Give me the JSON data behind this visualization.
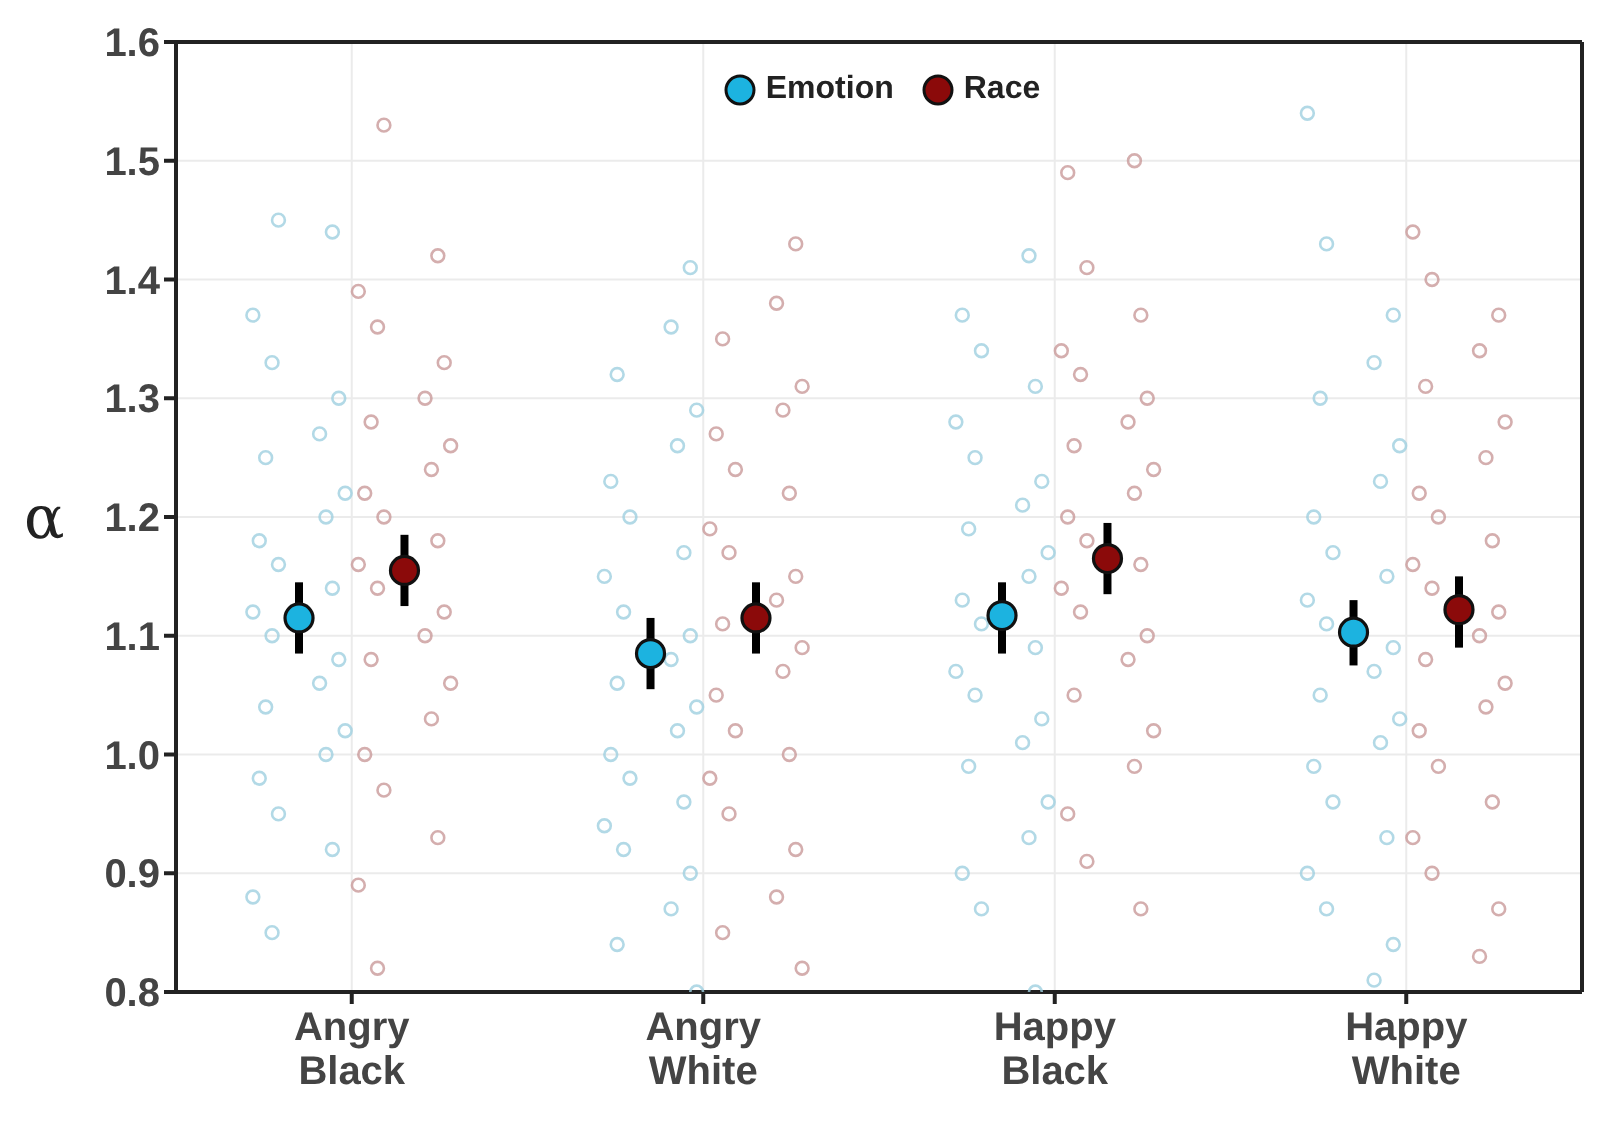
{
  "chart_data": {
    "type": "scatter",
    "ylabel": "α",
    "categories": [
      "Angry Black",
      "Angry White",
      "Happy Black",
      "Happy White"
    ],
    "ylim": [
      0.8,
      1.6
    ],
    "yticks": [
      0.8,
      0.9,
      {
        "value": 1.0,
        "label": "1.0"
      },
      1.1,
      1.2,
      1.3,
      1.4,
      1.5,
      1.6
    ],
    "grid": true,
    "legend": "top",
    "marker": "circle",
    "series": [
      {
        "color": "#9fd0e0",
        "x": [
          "Angry Black",
          "Angry Black",
          "Angry Black",
          "Angry Black",
          "Angry Black",
          "Angry Black",
          "Angry Black",
          "Angry Black",
          "Angry Black",
          "Angry Black",
          "Angry Black",
          "Angry Black",
          "Angry Black",
          "Angry Black",
          "Angry Black",
          "Angry Black",
          "Angry Black",
          "Angry Black",
          "Angry Black",
          "Angry Black",
          "Angry Black",
          "Angry Black",
          "Angry Black",
          "Angry Black",
          "Angry White",
          "Angry White",
          "Angry White",
          "Angry White",
          "Angry White",
          "Angry White",
          "Angry White",
          "Angry White",
          "Angry White",
          "Angry White",
          "Angry White",
          "Angry White",
          "Angry White",
          "Angry White",
          "Angry White",
          "Angry White",
          "Angry White",
          "Angry White",
          "Angry White",
          "Angry White",
          "Angry White",
          "Angry White",
          "Angry White",
          "Angry White",
          "Happy Black",
          "Happy Black",
          "Happy Black",
          "Happy Black",
          "Happy Black",
          "Happy Black",
          "Happy Black",
          "Happy Black",
          "Happy Black",
          "Happy Black",
          "Happy Black",
          "Happy Black",
          "Happy Black",
          "Happy Black",
          "Happy Black",
          "Happy Black",
          "Happy Black",
          "Happy Black",
          "Happy Black",
          "Happy Black",
          "Happy Black",
          "Happy Black",
          "Happy Black",
          "Happy Black",
          "Happy White",
          "Happy White",
          "Happy White",
          "Happy White",
          "Happy White",
          "Happy White",
          "Happy White",
          "Happy White",
          "Happy White",
          "Happy White",
          "Happy White",
          "Happy White",
          "Happy White",
          "Happy White",
          "Happy White",
          "Happy White",
          "Happy White",
          "Happy White",
          "Happy White",
          "Happy White",
          "Happy White",
          "Happy White",
          "Happy White",
          "Happy White"
        ],
        "values": [
          1.45,
          1.44,
          1.37,
          1.33,
          1.3,
          1.27,
          1.25,
          1.22,
          1.2,
          1.18,
          1.16,
          1.14,
          1.12,
          1.1,
          1.08,
          1.06,
          1.04,
          1.02,
          1.0,
          0.98,
          0.95,
          0.92,
          0.88,
          0.85,
          1.41,
          1.36,
          1.32,
          1.29,
          1.26,
          1.23,
          1.2,
          1.17,
          1.15,
          1.12,
          1.1,
          1.08,
          1.06,
          1.04,
          1.02,
          1.0,
          0.98,
          0.96,
          0.94,
          0.92,
          0.9,
          0.87,
          0.84,
          0.8,
          1.42,
          1.37,
          1.34,
          1.31,
          1.28,
          1.25,
          1.23,
          1.21,
          1.19,
          1.17,
          1.15,
          1.13,
          1.11,
          1.09,
          1.07,
          1.05,
          1.03,
          1.01,
          0.99,
          0.96,
          0.93,
          0.9,
          0.87,
          0.8,
          1.54,
          1.43,
          1.37,
          1.33,
          1.3,
          1.26,
          1.23,
          1.2,
          1.17,
          1.15,
          1.13,
          1.11,
          1.09,
          1.07,
          1.05,
          1.03,
          1.01,
          0.99,
          0.96,
          0.93,
          0.9,
          0.87,
          0.84,
          0.81
        ]
      },
      {
        "color": "#c99a9a",
        "x": [
          "Angry Black",
          "Angry Black",
          "Angry Black",
          "Angry Black",
          "Angry Black",
          "Angry Black",
          "Angry Black",
          "Angry Black",
          "Angry Black",
          "Angry Black",
          "Angry Black",
          "Angry Black",
          "Angry Black",
          "Angry Black",
          "Angry Black",
          "Angry Black",
          "Angry Black",
          "Angry Black",
          "Angry Black",
          "Angry Black",
          "Angry Black",
          "Angry Black",
          "Angry Black",
          "Angry Black",
          "Angry White",
          "Angry White",
          "Angry White",
          "Angry White",
          "Angry White",
          "Angry White",
          "Angry White",
          "Angry White",
          "Angry White",
          "Angry White",
          "Angry White",
          "Angry White",
          "Angry White",
          "Angry White",
          "Angry White",
          "Angry White",
          "Angry White",
          "Angry White",
          "Angry White",
          "Angry White",
          "Angry White",
          "Angry White",
          "Angry White",
          "Angry White",
          "Happy Black",
          "Happy Black",
          "Happy Black",
          "Happy Black",
          "Happy Black",
          "Happy Black",
          "Happy Black",
          "Happy Black",
          "Happy Black",
          "Happy Black",
          "Happy Black",
          "Happy Black",
          "Happy Black",
          "Happy Black",
          "Happy Black",
          "Happy Black",
          "Happy Black",
          "Happy Black",
          "Happy Black",
          "Happy Black",
          "Happy Black",
          "Happy Black",
          "Happy Black",
          "Happy Black",
          "Happy White",
          "Happy White",
          "Happy White",
          "Happy White",
          "Happy White",
          "Happy White",
          "Happy White",
          "Happy White",
          "Happy White",
          "Happy White",
          "Happy White",
          "Happy White",
          "Happy White",
          "Happy White",
          "Happy White",
          "Happy White",
          "Happy White",
          "Happy White",
          "Happy White",
          "Happy White",
          "Happy White",
          "Happy White",
          "Happy White",
          "Happy White"
        ],
        "values": [
          1.53,
          1.42,
          1.39,
          1.36,
          1.33,
          1.3,
          1.28,
          1.26,
          1.24,
          1.22,
          1.2,
          1.18,
          1.16,
          1.14,
          1.12,
          1.1,
          1.08,
          1.06,
          1.03,
          1.0,
          0.97,
          0.93,
          0.89,
          0.82,
          1.43,
          1.38,
          1.35,
          1.31,
          1.29,
          1.27,
          1.24,
          1.22,
          1.19,
          1.17,
          1.15,
          1.13,
          1.11,
          1.09,
          1.07,
          1.05,
          1.02,
          1.0,
          0.98,
          0.95,
          0.92,
          0.88,
          0.85,
          0.82,
          1.5,
          1.49,
          1.41,
          1.37,
          1.34,
          1.32,
          1.3,
          1.28,
          1.26,
          1.24,
          1.22,
          1.2,
          1.18,
          1.16,
          1.14,
          1.12,
          1.1,
          1.08,
          1.05,
          1.02,
          0.99,
          0.95,
          0.91,
          0.87,
          1.44,
          1.4,
          1.37,
          1.34,
          1.31,
          1.28,
          1.25,
          1.22,
          1.2,
          1.18,
          1.16,
          1.14,
          1.12,
          1.1,
          1.08,
          1.06,
          1.04,
          1.02,
          0.99,
          0.96,
          0.93,
          0.9,
          0.87,
          0.83
        ]
      },
      {
        "name": "Emotion",
        "color": "#1cb3e0",
        "x": [
          "Angry Black",
          "Angry White",
          "Happy Black",
          "Happy White"
        ],
        "values": [
          1.115,
          1.085,
          1.117,
          1.103
        ],
        "errors": [
          [
            1.085,
            1.145
          ],
          [
            1.055,
            1.115
          ],
          [
            1.085,
            1.145
          ],
          [
            1.075,
            1.13
          ]
        ]
      },
      {
        "name": "Race",
        "color": "#8b0a0a",
        "x": [
          "Angry Black",
          "Angry White",
          "Happy Black",
          "Happy White"
        ],
        "values": [
          1.155,
          1.115,
          1.165,
          1.122
        ],
        "errors": [
          [
            1.125,
            1.185
          ],
          [
            1.085,
            1.145
          ],
          [
            1.135,
            1.195
          ],
          [
            1.09,
            1.15
          ]
        ]
      }
    ]
  }
}
